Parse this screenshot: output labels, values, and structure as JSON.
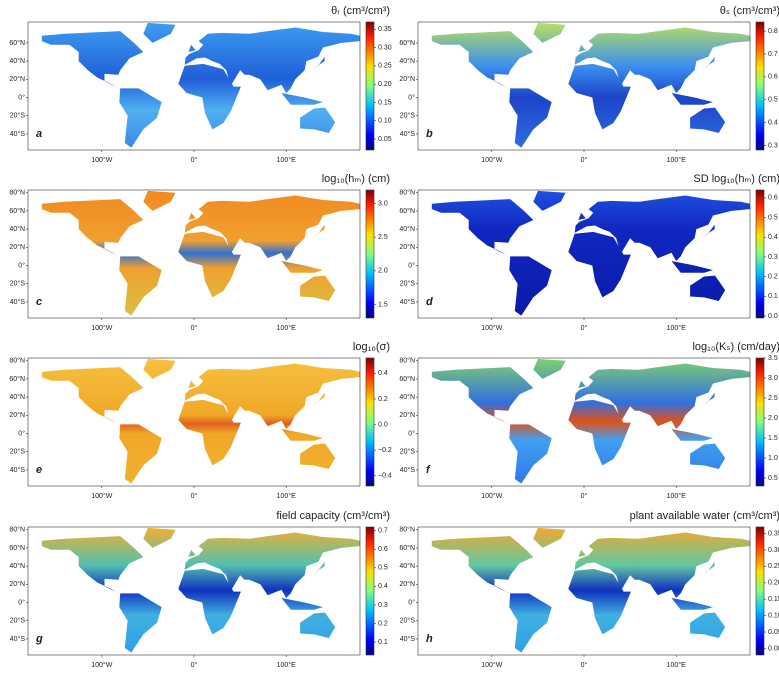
{
  "lon_ticks": [
    {
      "value": -100,
      "label": "100°W"
    },
    {
      "value": 0,
      "label": "0°"
    },
    {
      "value": 100,
      "label": "100°E"
    }
  ],
  "panels": [
    {
      "title": "θᵣ (cm³/cm³)",
      "letter": "a",
      "lat_ticks": [
        {
          "value": 60,
          "label": "60°N"
        },
        {
          "value": 40,
          "label": "40°N"
        },
        {
          "value": 20,
          "label": "20°N"
        },
        {
          "value": 0,
          "label": "0°"
        },
        {
          "value": -20,
          "label": "20°S"
        },
        {
          "value": -40,
          "label": "40°S"
        }
      ],
      "clim": [
        0.02,
        0.37
      ],
      "cticks": [
        0.05,
        {
          "value": 0.1,
          "label": "0.10"
        },
        0.15,
        {
          "value": 0.2,
          "label": "0.20"
        },
        0.25,
        {
          "value": 0.3,
          "label": "0.30"
        },
        0.35
      ]
    },
    {
      "title": "θₛ (cm³/cm³)",
      "letter": "b",
      "lat_ticks": [
        {
          "value": 60,
          "label": "60°N"
        },
        {
          "value": 40,
          "label": "40°N"
        },
        {
          "value": 20,
          "label": "20°N"
        },
        {
          "value": 0,
          "label": "0°"
        },
        {
          "value": -20,
          "label": "20°S"
        },
        {
          "value": -40,
          "label": "40°S"
        }
      ],
      "clim": [
        0.28,
        0.84
      ],
      "cticks": [
        0.3,
        0.4,
        0.5,
        0.6,
        0.7,
        0.8
      ]
    },
    {
      "title": "log₁₀(hₘ) (cm)",
      "letter": "c",
      "lat_ticks": [
        {
          "value": 80,
          "label": "80°N"
        },
        {
          "value": 60,
          "label": "60°N"
        },
        {
          "value": 40,
          "label": "40°N"
        },
        {
          "value": 20,
          "label": "20°N"
        },
        {
          "value": 0,
          "label": "0°"
        },
        {
          "value": -20,
          "label": "20°S"
        },
        {
          "value": -40,
          "label": "40°S"
        }
      ],
      "clim": [
        1.3,
        3.2
      ],
      "cticks": [
        1.5,
        {
          "value": 2,
          "label": "2.0"
        },
        2.5,
        {
          "value": 3,
          "label": "3.0"
        }
      ]
    },
    {
      "title": "SD log₁₀(hₘ) (cm)",
      "letter": "d",
      "lat_ticks": [
        {
          "value": 80,
          "label": "80°N"
        },
        {
          "value": 60,
          "label": "60°N"
        },
        {
          "value": 40,
          "label": "40°N"
        },
        {
          "value": 20,
          "label": "20°N"
        },
        {
          "value": 0,
          "label": "0°"
        },
        {
          "value": -20,
          "label": "20°S"
        },
        {
          "value": -40,
          "label": "40°S"
        }
      ],
      "clim": [
        -0.01,
        0.64
      ],
      "cticks": [
        {
          "value": 0,
          "label": "0.0"
        },
        0.1,
        0.2,
        0.3,
        0.4,
        0.5,
        0.6
      ]
    },
    {
      "title": "log₁₀(σ)",
      "letter": "e",
      "lat_ticks": [
        {
          "value": 80,
          "label": "80°N"
        },
        {
          "value": 60,
          "label": "60°N"
        },
        {
          "value": 40,
          "label": "40°N"
        },
        {
          "value": 20,
          "label": "20°N"
        },
        {
          "value": 0,
          "label": "0°"
        },
        {
          "value": -20,
          "label": "20°S"
        },
        {
          "value": -40,
          "label": "40°S"
        }
      ],
      "clim": [
        -0.48,
        0.52
      ],
      "cticks": [
        {
          "value": -0.4,
          "label": "−0.4"
        },
        {
          "value": -0.2,
          "label": "−0.2"
        },
        {
          "value": 0,
          "label": "0.0"
        },
        0.2,
        0.4
      ]
    },
    {
      "title": "log₁₀(Kₛ) (cm/day)",
      "letter": "f",
      "lat_ticks": [
        {
          "value": 80,
          "label": "80°N"
        },
        {
          "value": 60,
          "label": "60°N"
        },
        {
          "value": 40,
          "label": "40°N"
        },
        {
          "value": 20,
          "label": "20°N"
        },
        {
          "value": 0,
          "label": "0°"
        },
        {
          "value": -20,
          "label": "20°S"
        },
        {
          "value": -40,
          "label": "40°S"
        }
      ],
      "clim": [
        0.3,
        3.5
      ],
      "cticks": [
        0.5,
        {
          "value": 1,
          "label": "1.0"
        },
        1.5,
        {
          "value": 2,
          "label": "2.0"
        },
        2.5,
        {
          "value": 3,
          "label": "3.0"
        },
        3.5
      ]
    },
    {
      "title": "field capacity (cm³/cm³)",
      "letter": "g",
      "lat_ticks": [
        {
          "value": 80,
          "label": "80°N"
        },
        {
          "value": 60,
          "label": "60°N"
        },
        {
          "value": 40,
          "label": "40°N"
        },
        {
          "value": 20,
          "label": "20°N"
        },
        {
          "value": 0,
          "label": "0°"
        },
        {
          "value": -20,
          "label": "20°S"
        },
        {
          "value": -40,
          "label": "40°S"
        }
      ],
      "clim": [
        0.03,
        0.72
      ],
      "cticks": [
        0.1,
        0.2,
        0.3,
        0.4,
        0.5,
        0.6,
        0.7
      ]
    },
    {
      "title": "plant available water (cm³/cm³)",
      "letter": "h",
      "lat_ticks": [
        {
          "value": 80,
          "label": "80°N"
        },
        {
          "value": 60,
          "label": "60°N"
        },
        {
          "value": 40,
          "label": "40°N"
        },
        {
          "value": 20,
          "label": "20°N"
        },
        {
          "value": 0,
          "label": "0°"
        },
        {
          "value": -20,
          "label": "20°S"
        },
        {
          "value": -40,
          "label": "40°S"
        }
      ],
      "clim": [
        -0.02,
        0.37
      ],
      "cticks": [
        {
          "value": 0,
          "label": "0.00"
        },
        0.05,
        {
          "value": 0.1,
          "label": "0.10"
        },
        0.15,
        {
          "value": 0.2,
          "label": "0.20"
        },
        0.25,
        {
          "value": 0.3,
          "label": "0.30"
        },
        0.35
      ]
    }
  ]
}
